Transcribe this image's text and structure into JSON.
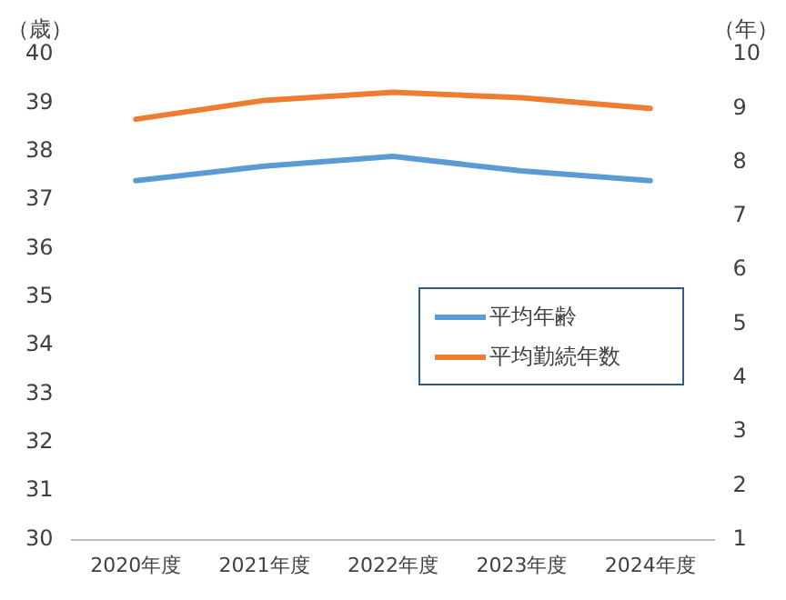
{
  "chart_data": {
    "type": "line",
    "ylabel": "（歳）",
    "y2label": "（年）",
    "categories": [
      "2020年度",
      "2021年度",
      "2022年度",
      "2023年度",
      "2024年度"
    ],
    "series": [
      {
        "name": "平均年齢",
        "color": "#5b9bd5",
        "values": [
          37.4,
          37.7,
          37.9,
          37.6,
          37.4
        ]
      },
      {
        "name": "平均勤続年数",
        "color": "#ed7d31",
        "axis": "y2",
        "values": [
          8.8,
          9.15,
          9.3,
          9.2,
          9.0
        ]
      }
    ],
    "ylim": [
      30,
      40
    ],
    "yticks": [
      30,
      31,
      32,
      33,
      34,
      35,
      36,
      37,
      38,
      39,
      40
    ],
    "y2lim": [
      1,
      10
    ],
    "y2ticks": [
      1,
      2,
      3,
      4,
      5,
      6,
      7,
      8,
      9,
      10
    ],
    "grid": false,
    "legend": "right",
    "marker": "none",
    "line_style": "solid"
  }
}
